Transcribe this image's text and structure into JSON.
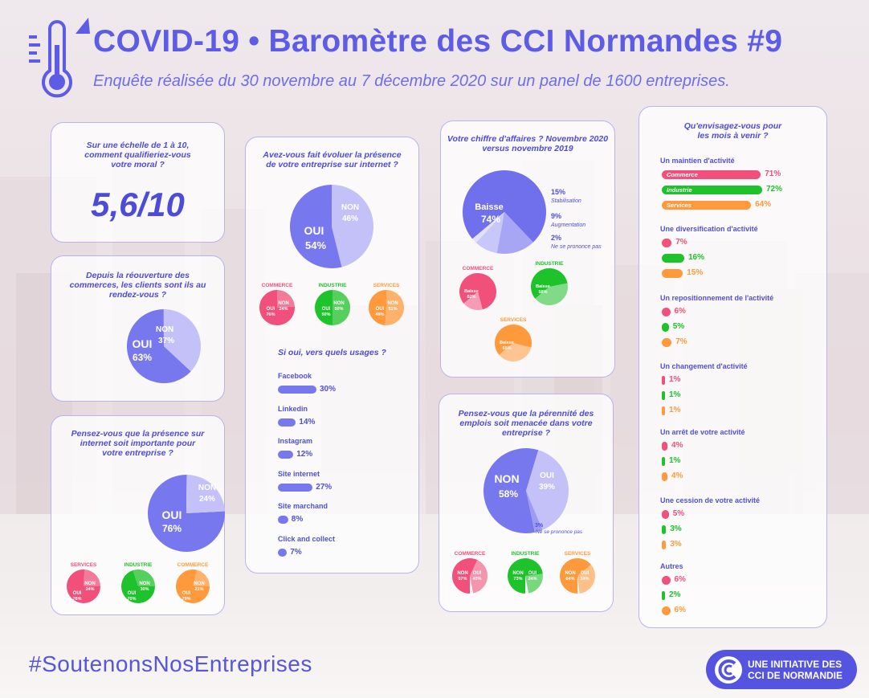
{
  "header": {
    "title": "COVID-19 • Baromètre des CCI Normandes #9",
    "subtitle": "Enquête réalisée du 30 novembre au 7 décembre 2020 sur un panel de 1600 entreprises."
  },
  "footer": {
    "hashtag": "#SoutenonsNosEntreprises",
    "badge_line1": "UNE INITIATIVE DES",
    "badge_line2": "CCI DE NORMANDIE"
  },
  "colors": {
    "primary": "#5c5ce6",
    "commerce": "#f0507a",
    "industrie": "#1ec22a",
    "services": "#ff9a3c"
  },
  "chart_data": [
    {
      "id": "moral",
      "type": "table",
      "title": "Sur une échelle de 1 à 10, comment qualifieriez-vous votre moral ?",
      "value": "5,6/10"
    },
    {
      "id": "clients",
      "type": "pie",
      "title": "Depuis la réouverture des commerces, les clients sont ils au rendez-vous ?",
      "slices": [
        {
          "label": "OUI",
          "value": 63,
          "text": "63%"
        },
        {
          "label": "NON",
          "value": 37,
          "text": "37%"
        }
      ]
    },
    {
      "id": "internet_importance",
      "type": "pie",
      "title": "Pensez-vous que la présence sur internet soit importante pour votre entreprise ?",
      "slices": [
        {
          "label": "OUI",
          "value": 76,
          "text": "76%"
        },
        {
          "label": "NON",
          "value": 24,
          "text": "24%"
        }
      ],
      "sectors": [
        {
          "name": "SERVICES",
          "oui": "76%",
          "non": "24%"
        },
        {
          "name": "INDUSTRIE",
          "oui": "70%",
          "non": "30%"
        },
        {
          "name": "COMMERCE",
          "oui": "79%",
          "non": "21%"
        }
      ]
    },
    {
      "id": "internet_evolution",
      "type": "pie",
      "title": "Avez-vous fait évoluer la présence de votre entreprise sur internet ?",
      "slices": [
        {
          "label": "OUI",
          "value": 54,
          "text": "54%"
        },
        {
          "label": "NON",
          "value": 46,
          "text": "46%"
        }
      ],
      "sectors": [
        {
          "name": "COMMERCE",
          "oui": "76%",
          "non": "24%"
        },
        {
          "name": "INDUSTRIE",
          "oui": "50%",
          "non": "50%"
        },
        {
          "name": "SERVICES",
          "oui": "49%",
          "non": "51%"
        }
      ]
    },
    {
      "id": "usages",
      "type": "bar",
      "title": "Si oui, vers quels usages ?",
      "categories": [
        "Facebook",
        "Linkedin",
        "Instagram",
        "Site internet",
        "Site marchand",
        "Click and collect"
      ],
      "values": [
        30,
        14,
        12,
        27,
        8,
        7
      ],
      "labels": [
        "30%",
        "14%",
        "12%",
        "27%",
        "8%",
        "7%"
      ]
    },
    {
      "id": "ca",
      "type": "pie",
      "title": "Votre chiffre d'affaires ? Novembre 2020 versus novembre 2019",
      "slices": [
        {
          "label": "Baisse",
          "value": 74,
          "text": "74%"
        },
        {
          "label": "Stabilisation",
          "value": 15,
          "text": "15%"
        },
        {
          "label": "Augmentation",
          "value": 9,
          "text": "9%"
        },
        {
          "label": "Ne se prononce pas",
          "value": 2,
          "text": "2%"
        }
      ],
      "sectors": [
        {
          "name": "COMMERCE",
          "baisse": "82%"
        },
        {
          "name": "INDUSTRIE",
          "baisse": "58%"
        },
        {
          "name": "SERVICES",
          "baisse": "65%"
        }
      ]
    },
    {
      "id": "emplois",
      "type": "pie",
      "title": "Pensez-vous que la pérennité des emplois soit menacée dans votre entreprise ?",
      "slices": [
        {
          "label": "NON",
          "value": 58,
          "text": "58%"
        },
        {
          "label": "OUI",
          "value": 39,
          "text": "39%"
        },
        {
          "label": "Ne se prononce pas",
          "value": 3,
          "text": "3%"
        }
      ],
      "sectors": [
        {
          "name": "COMMERCE",
          "oui": "40%",
          "non": "57%"
        },
        {
          "name": "INDUSTRIE",
          "oui": "24%",
          "non": "73%"
        },
        {
          "name": "SERVICES",
          "oui": "34%",
          "non": "64%"
        }
      ]
    },
    {
      "id": "projets",
      "type": "bar",
      "title": "Qu'envisagez-vous pour les mois à venir ?",
      "groups": [
        {
          "title": "Un maintien d'activité",
          "rows": [
            {
              "sector": "Commerce",
              "value": 71,
              "text": "71%"
            },
            {
              "sector": "Industrie",
              "value": 72,
              "text": "72%"
            },
            {
              "sector": "Services",
              "value": 64,
              "text": "64%"
            }
          ]
        },
        {
          "title": "Une diversification d'activité",
          "rows": [
            {
              "sector": "Commerce",
              "value": 7,
              "text": "7%"
            },
            {
              "sector": "Industrie",
              "value": 16,
              "text": "16%"
            },
            {
              "sector": "Services",
              "value": 15,
              "text": "15%"
            }
          ]
        },
        {
          "title": "Un repositionnement de l'activité",
          "rows": [
            {
              "sector": "Commerce",
              "value": 6,
              "text": "6%"
            },
            {
              "sector": "Industrie",
              "value": 5,
              "text": "5%"
            },
            {
              "sector": "Services",
              "value": 7,
              "text": "7%"
            }
          ]
        },
        {
          "title": "Un changement d'activité",
          "rows": [
            {
              "sector": "Commerce",
              "value": 1,
              "text": "1%"
            },
            {
              "sector": "Industrie",
              "value": 1,
              "text": "1%"
            },
            {
              "sector": "Services",
              "value": 1,
              "text": "1%"
            }
          ]
        },
        {
          "title": "Un arrêt de votre activité",
          "rows": [
            {
              "sector": "Commerce",
              "value": 4,
              "text": "4%"
            },
            {
              "sector": "Industrie",
              "value": 1,
              "text": "1%"
            },
            {
              "sector": "Services",
              "value": 4,
              "text": "4%"
            }
          ]
        },
        {
          "title": "Une cession de votre activité",
          "rows": [
            {
              "sector": "Commerce",
              "value": 5,
              "text": "5%"
            },
            {
              "sector": "Industrie",
              "value": 3,
              "text": "3%"
            },
            {
              "sector": "Services",
              "value": 3,
              "text": "3%"
            }
          ]
        },
        {
          "title": "Autres",
          "rows": [
            {
              "sector": "Commerce",
              "value": 6,
              "text": "6%"
            },
            {
              "sector": "Industrie",
              "value": 2,
              "text": "2%"
            },
            {
              "sector": "Services",
              "value": 6,
              "text": "6%"
            }
          ]
        }
      ]
    }
  ]
}
